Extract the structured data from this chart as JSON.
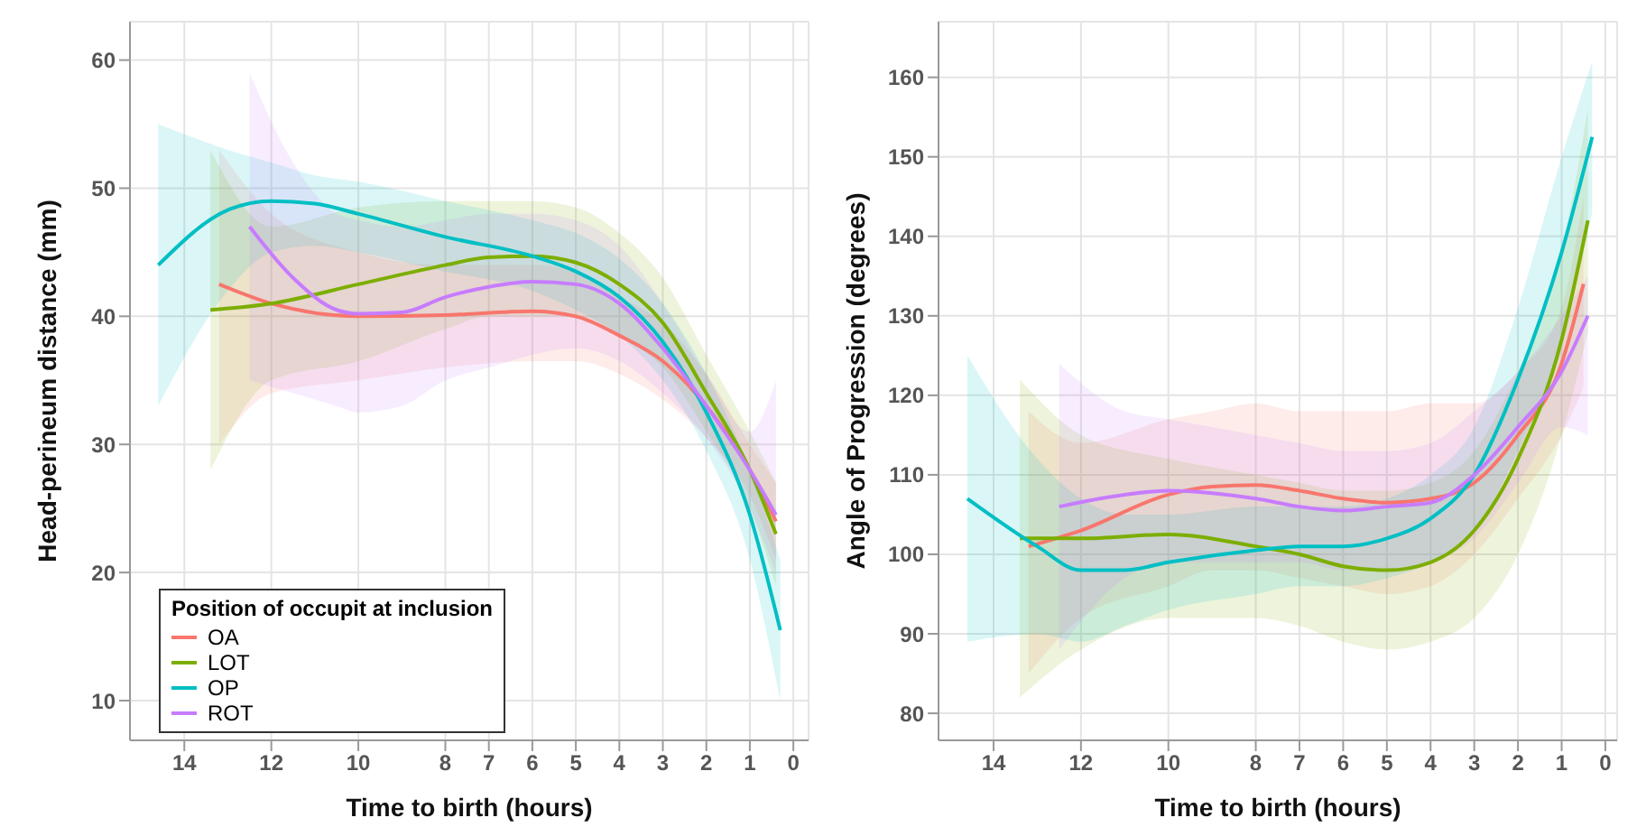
{
  "chart_data": [
    {
      "type": "line",
      "xlabel": "Time to birth (hours)",
      "ylabel": "Head-perineum distance (mm)",
      "xlim": [
        15.25,
        -0.35
      ],
      "xticks": [
        14,
        12,
        10,
        8,
        7,
        6,
        5,
        4,
        3,
        2,
        1,
        0
      ],
      "ylim": [
        6.9,
        63
      ],
      "yticks": [
        10,
        20,
        30,
        40,
        50,
        60
      ],
      "grid": true,
      "legend": "bottom left",
      "legend_title": "Position of occupit at inclusion",
      "series": [
        {
          "name": "OA",
          "color": "#f8766d",
          "x": [
            13.2,
            12,
            10,
            8,
            6,
            5,
            4,
            3,
            2,
            1,
            0.4
          ],
          "values": [
            42.5,
            41,
            40,
            40.1,
            40.4,
            40,
            38.5,
            36.5,
            33,
            28,
            24
          ],
          "lower": [
            30,
            34,
            35,
            36,
            36.5,
            36.5,
            35.5,
            33.5,
            30.5,
            26,
            21
          ],
          "upper": [
            53,
            48,
            45,
            44,
            44,
            43.5,
            41.5,
            39.5,
            35.5,
            30,
            27
          ]
        },
        {
          "name": "LOT",
          "color": "#7cae00",
          "x": [
            13.4,
            12,
            10,
            8,
            7,
            6,
            5,
            4,
            3,
            2,
            1,
            0.4
          ],
          "values": [
            40.5,
            41,
            42.5,
            44,
            44.6,
            44.7,
            44.2,
            42.5,
            39.5,
            34,
            28,
            23
          ],
          "lower": [
            28,
            35,
            36.5,
            39,
            40,
            40,
            40,
            38.5,
            36,
            31,
            25,
            19
          ],
          "upper": [
            53,
            47,
            48.5,
            49,
            49,
            49,
            48.5,
            46.5,
            43,
            37,
            31,
            27
          ]
        },
        {
          "name": "OP",
          "color": "#00bfc4",
          "x": [
            14.6,
            13,
            12,
            11,
            10,
            8,
            6,
            5,
            4,
            3,
            2,
            1,
            0.3
          ],
          "values": [
            44,
            48.3,
            49,
            48.8,
            48,
            46.2,
            44.7,
            43.5,
            41.5,
            38,
            32.5,
            24.5,
            15.5
          ],
          "lower": [
            33,
            42,
            45,
            45.5,
            45,
            43.5,
            42,
            40.5,
            38.5,
            35,
            29.5,
            21,
            10
          ],
          "upper": [
            55,
            53,
            52,
            51,
            50.5,
            49,
            47.5,
            46.5,
            44.5,
            41,
            35.5,
            28,
            21
          ]
        },
        {
          "name": "ROT",
          "color": "#c77cff",
          "x": [
            12.5,
            11.5,
            10.5,
            10,
            9,
            8,
            7,
            6,
            5,
            4,
            3,
            2,
            1,
            0.4
          ],
          "values": [
            47,
            43,
            40.5,
            40.2,
            40.3,
            41.5,
            42.3,
            42.7,
            42.5,
            41,
            37.5,
            33,
            28,
            24.5
          ],
          "lower": [
            35,
            34,
            33,
            32.5,
            33,
            35,
            36,
            37,
            37.5,
            36.5,
            34,
            30.5,
            25,
            20
          ],
          "upper": [
            59,
            52,
            48,
            47.5,
            47,
            47.5,
            48,
            48,
            47.5,
            45.5,
            41,
            35.5,
            31,
            35
          ]
        }
      ]
    },
    {
      "type": "line",
      "xlabel": "Time to birth (hours)",
      "ylabel": "Angle of Progression (degrees)",
      "xlim": [
        15.26,
        -0.27
      ],
      "xticks": [
        14,
        12,
        10,
        8,
        7,
        6,
        5,
        4,
        3,
        2,
        1,
        0
      ],
      "ylim": [
        76.6,
        167
      ],
      "yticks": [
        80,
        90,
        100,
        110,
        120,
        130,
        140,
        150,
        160
      ],
      "grid": true,
      "series": [
        {
          "color": "#f8766d",
          "x": [
            13.2,
            12,
            10,
            9,
            8,
            7,
            6,
            5,
            4,
            3,
            2,
            1,
            0.5
          ],
          "values": [
            101,
            103,
            107.5,
            108.5,
            108.7,
            108,
            107,
            106.5,
            107,
            109,
            115,
            124,
            134
          ],
          "lower": [
            85,
            92,
            96,
            98,
            98,
            97,
            96,
            95,
            96,
            100,
            107,
            115,
            121
          ],
          "upper": [
            118,
            114,
            117,
            118,
            119,
            118,
            118,
            118,
            119,
            119,
            123,
            131,
            145
          ]
        },
        {
          "color": "#7cae00",
          "x": [
            13.4,
            12,
            10,
            8,
            7,
            6,
            5,
            4,
            3,
            2,
            1,
            0.4
          ],
          "values": [
            102,
            102,
            102.5,
            101,
            100,
            98.5,
            98,
            99,
            103,
            112,
            127,
            142
          ],
          "lower": [
            82,
            88,
            92,
            92,
            91,
            89,
            88,
            89,
            92,
            100,
            115,
            128
          ],
          "upper": [
            122,
            115,
            112,
            110,
            109,
            108,
            108,
            109,
            113,
            123,
            138,
            156
          ]
        },
        {
          "color": "#00bfc4",
          "x": [
            14.6,
            13,
            12,
            11,
            10,
            8,
            7,
            6,
            5,
            4,
            3,
            2,
            1,
            0.3
          ],
          "values": [
            107,
            101,
            98,
            98,
            99,
            100.5,
            101,
            101,
            102,
            104.5,
            110,
            122,
            138,
            152.5
          ],
          "lower": [
            89,
            90,
            89,
            91,
            93,
            95,
            96,
            96,
            97,
            99,
            103,
            113,
            127,
            143
          ],
          "upper": [
            125,
            112,
            107,
            105,
            105,
            106,
            106,
            106,
            107,
            110,
            116,
            131,
            150,
            162
          ]
        },
        {
          "color": "#c77cff",
          "x": [
            12.5,
            11,
            10,
            8,
            7,
            6,
            5,
            4,
            3,
            2,
            1,
            0.4
          ],
          "values": [
            106,
            107.5,
            108,
            107,
            106,
            105.5,
            106,
            106.5,
            110,
            116,
            123,
            130
          ],
          "lower": [
            88,
            97,
            99,
            99,
            99,
            98,
            98,
            99,
            102,
            109,
            116,
            115
          ],
          "upper": [
            124,
            118,
            117,
            115,
            114,
            113,
            113,
            114,
            118,
            123,
            130,
            135
          ]
        }
      ]
    }
  ]
}
